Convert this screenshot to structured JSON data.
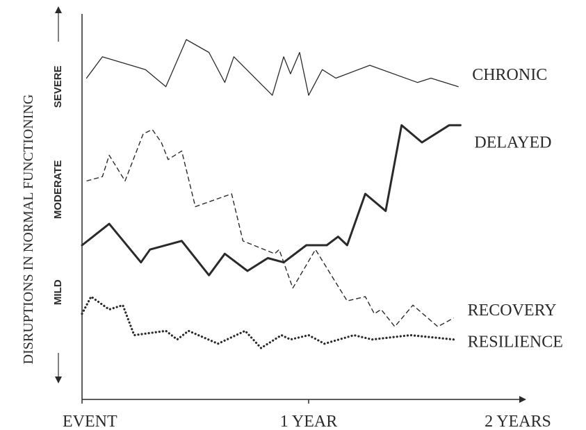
{
  "chart_data": {
    "type": "line",
    "title": "",
    "ylabel": "DISRUPTIONS IN NORMAL FUNCTIONING",
    "xlabel": "",
    "x_tick_labels": [
      {
        "label": "EVENT",
        "x": 0
      },
      {
        "label": "1 YEAR",
        "x": 1
      },
      {
        "label": "2 YEARS",
        "x": 2
      }
    ],
    "y_level_labels": [
      {
        "label": "MILD",
        "y": 2.5
      },
      {
        "label": "MODERATE",
        "y": 4.9
      },
      {
        "label": "SEVERE",
        "y": 7.3
      }
    ],
    "xlim": [
      0,
      2
    ],
    "ylim": [
      0,
      9
    ],
    "grid": false,
    "series": [
      {
        "name": "CHRONIC",
        "style": "thin-solid",
        "x": [
          0.02,
          0.09,
          0.28,
          0.37,
          0.46,
          0.56,
          0.63,
          0.67,
          0.84,
          0.89,
          0.92,
          0.96,
          1.0,
          1.06,
          1.12,
          1.27,
          1.48,
          1.54,
          1.66
        ],
        "y": [
          7.5,
          8.0,
          7.7,
          7.3,
          8.4,
          8.1,
          7.4,
          8.0,
          7.1,
          8.0,
          7.6,
          8.1,
          7.1,
          7.7,
          7.5,
          7.8,
          7.4,
          7.5,
          7.3
        ]
      },
      {
        "name": "DELAYED",
        "style": "thick-solid",
        "x": [
          0.0,
          0.12,
          0.26,
          0.3,
          0.44,
          0.56,
          0.63,
          0.73,
          0.82,
          0.89,
          0.99,
          1.08,
          1.13,
          1.17,
          1.25,
          1.34,
          1.41,
          1.5,
          1.62,
          1.67
        ],
        "y": [
          3.6,
          4.1,
          3.2,
          3.5,
          3.7,
          2.9,
          3.4,
          3.0,
          3.3,
          3.2,
          3.6,
          3.6,
          3.8,
          3.6,
          4.8,
          4.4,
          6.4,
          6.0,
          6.4,
          6.4
        ]
      },
      {
        "name": "RECOVERY",
        "style": "dashed",
        "x": [
          0.02,
          0.09,
          0.12,
          0.19,
          0.27,
          0.31,
          0.35,
          0.38,
          0.44,
          0.5,
          0.66,
          0.71,
          0.85,
          0.87,
          0.93,
          1.03,
          1.17,
          1.25,
          1.29,
          1.32,
          1.38,
          1.46,
          1.57,
          1.64
        ],
        "y": [
          5.1,
          5.2,
          5.7,
          5.1,
          6.2,
          6.3,
          6.0,
          5.6,
          5.8,
          4.5,
          4.8,
          3.7,
          3.4,
          3.5,
          2.6,
          3.5,
          2.3,
          2.4,
          2.0,
          2.1,
          1.7,
          2.2,
          1.7,
          1.9
        ]
      },
      {
        "name": "RESILIENCE",
        "style": "dotted",
        "x": [
          0.0,
          0.04,
          0.12,
          0.18,
          0.23,
          0.37,
          0.42,
          0.47,
          0.6,
          0.72,
          0.79,
          0.88,
          0.92,
          1.0,
          1.07,
          1.2,
          1.28,
          1.45,
          1.64
        ],
        "y": [
          2.0,
          2.4,
          2.1,
          2.2,
          1.5,
          1.6,
          1.4,
          1.6,
          1.3,
          1.6,
          1.2,
          1.5,
          1.4,
          1.5,
          1.3,
          1.5,
          1.4,
          1.5,
          1.4
        ]
      }
    ]
  }
}
